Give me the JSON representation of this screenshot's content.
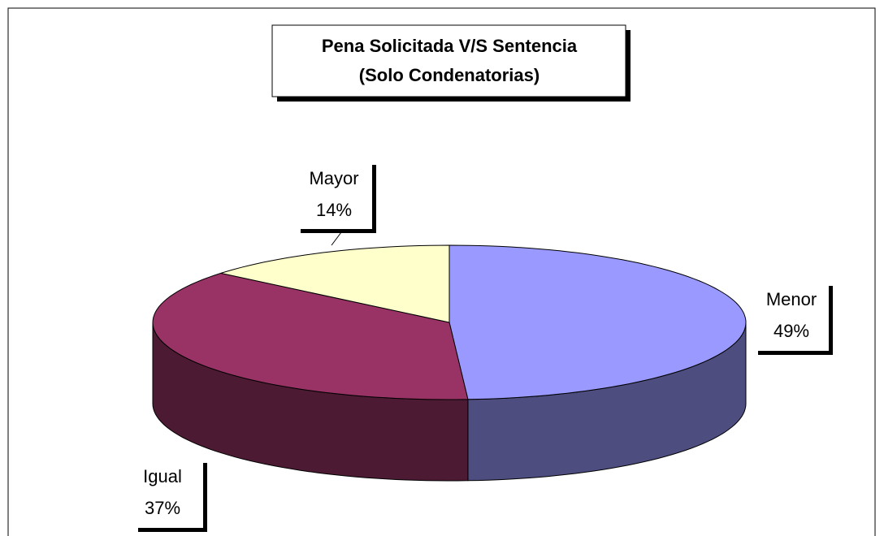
{
  "chart_data": {
    "type": "pie3d",
    "title": [
      "Pena Solicitada V/S Sentencia",
      "(Solo Condenatorias)"
    ],
    "categories": [
      "Menor",
      "Igual",
      "Mayor"
    ],
    "values": [
      49,
      37,
      14
    ],
    "value_labels": [
      "49%",
      "37%",
      "14%"
    ],
    "colors": [
      "#9999ff",
      "#993366",
      "#ffffcc"
    ]
  }
}
